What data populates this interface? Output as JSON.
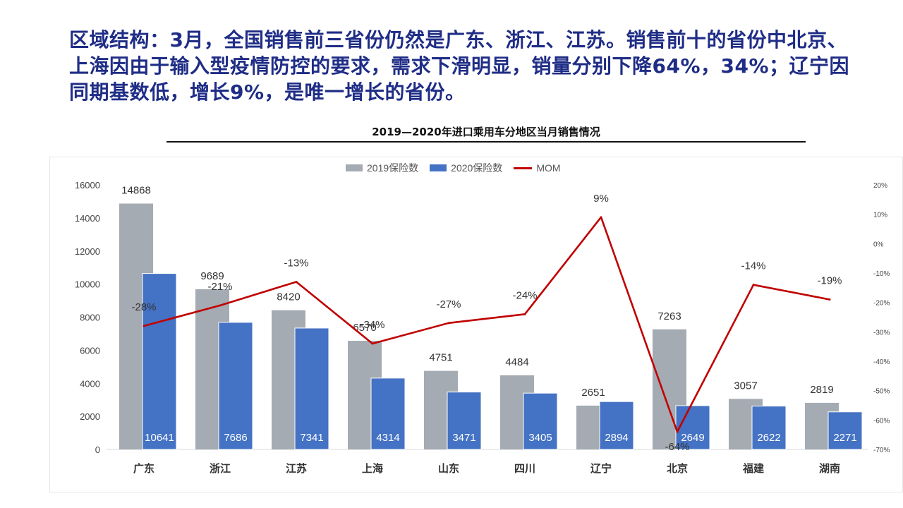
{
  "headline": "区域结构：3月，全国销售前三省份仍然是广东、浙江、江苏。销售前十的省份中北京、上海因由于输入型疫情防控的要求，需求下滑明显，销量分别下降64%，34%；辽宁因同期基数低，增长9%，是唯一增长的省份。",
  "chart_data": {
    "type": "bar",
    "title": "2019—2020年进口乘用车分地区当月销售情况",
    "categories": [
      "广东",
      "浙江",
      "江苏",
      "上海",
      "山东",
      "四川",
      "辽宁",
      "北京",
      "福建",
      "湖南"
    ],
    "series": [
      {
        "name": "2019保险数",
        "type": "bar",
        "color": "#a5abb2",
        "values": [
          14868,
          9689,
          8420,
          6570,
          4751,
          4484,
          2651,
          7263,
          3057,
          2819
        ]
      },
      {
        "name": "2020保险数",
        "type": "bar",
        "color": "#4472c4",
        "values": [
          10641,
          7686,
          7341,
          4314,
          3471,
          3405,
          2894,
          2649,
          2622,
          2271
        ]
      },
      {
        "name": "MOM",
        "type": "line",
        "axis": "right",
        "color": "#c00000",
        "values": [
          -28,
          -21,
          -13,
          -34,
          -27,
          -24,
          9,
          -64,
          -14,
          -19
        ],
        "labels": [
          "-28%",
          "-21%",
          "-13%",
          "-34%",
          "-27%",
          "-24%",
          "9%",
          "-64%",
          "-14%",
          "-19%"
        ]
      }
    ],
    "y_left": {
      "min": 0,
      "max": 16000,
      "ticks": [
        "0",
        "2000",
        "4000",
        "6000",
        "8000",
        "10000",
        "12000",
        "14000",
        "16000"
      ]
    },
    "y_right": {
      "min": -70,
      "max": 20,
      "ticks": [
        "-70%",
        "-60%",
        "-50%",
        "-40%",
        "-30%",
        "-20%",
        "-10%",
        "0%",
        "10%",
        "20%"
      ]
    },
    "legend_position": "top",
    "grid": false
  }
}
